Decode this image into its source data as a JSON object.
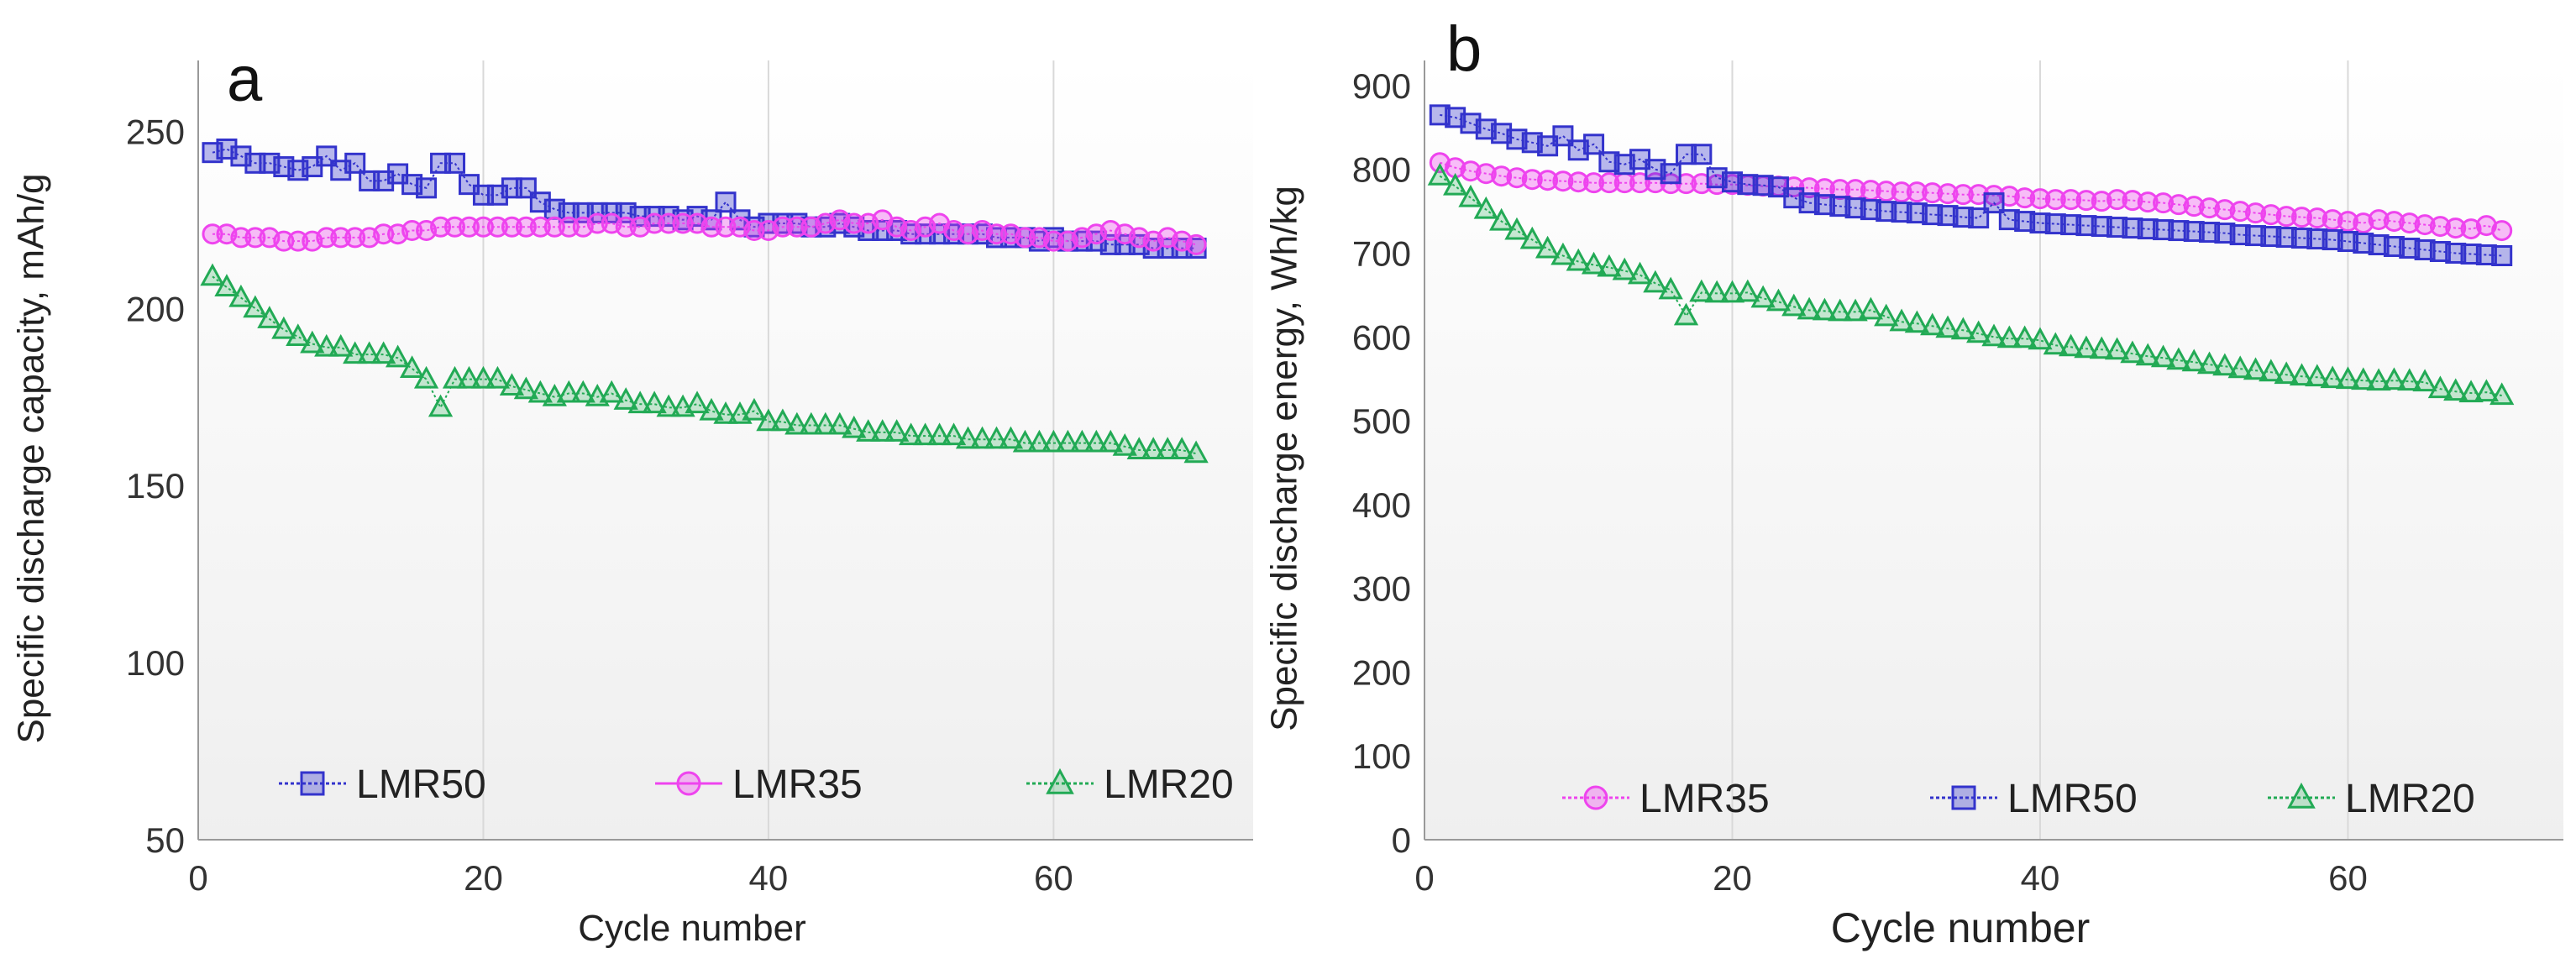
{
  "colors": {
    "LMR50": "#3333cc",
    "LMR35": "#ee44ee",
    "LMR20": "#22aa55",
    "grid": "#d9d9d9",
    "axis": "#333333"
  },
  "chart_data": [
    {
      "id": "a",
      "type": "line",
      "panel_label": "a",
      "title": "",
      "xlabel": "Cycle number",
      "ylabel": "Specific discharge capacity, mAh/g",
      "xlim": [
        0,
        74
      ],
      "ylim": [
        50,
        270
      ],
      "xticks": [
        0,
        20,
        40,
        60
      ],
      "yticks": [
        50,
        100,
        150,
        200,
        250
      ],
      "grid": "vertical",
      "legend": "bottom",
      "series": [
        {
          "name": "LMR50",
          "marker": "square",
          "x": [
            1,
            2,
            3,
            4,
            5,
            6,
            7,
            8,
            9,
            10,
            11,
            12,
            13,
            14,
            15,
            16,
            17,
            18,
            19,
            20,
            21,
            22,
            23,
            24,
            25,
            26,
            27,
            28,
            29,
            30,
            31,
            32,
            33,
            34,
            35,
            36,
            37,
            38,
            39,
            40,
            41,
            42,
            43,
            44,
            45,
            46,
            47,
            48,
            49,
            50,
            51,
            52,
            53,
            54,
            55,
            56,
            57,
            58,
            59,
            60,
            61,
            62,
            63,
            64,
            65,
            66,
            67,
            68,
            69,
            70
          ],
          "y": [
            244,
            245,
            243,
            241,
            241,
            240,
            239,
            240,
            243,
            239,
            241,
            236,
            236,
            238,
            235,
            234,
            241,
            241,
            235,
            232,
            232,
            234,
            234,
            230,
            228,
            227,
            227,
            227,
            227,
            227,
            226,
            226,
            226,
            225,
            226,
            225,
            230,
            225,
            223,
            224,
            224,
            224,
            223,
            223,
            224,
            223,
            222,
            222,
            222,
            221,
            221,
            221,
            221,
            221,
            221,
            220,
            220,
            220,
            219,
            220,
            219,
            219,
            219,
            218,
            218,
            218,
            217,
            217,
            217,
            217
          ]
        },
        {
          "name": "LMR35",
          "marker": "circle",
          "x": [
            1,
            2,
            3,
            4,
            5,
            6,
            7,
            8,
            9,
            10,
            11,
            12,
            13,
            14,
            15,
            16,
            17,
            18,
            19,
            20,
            21,
            22,
            23,
            24,
            25,
            26,
            27,
            28,
            29,
            30,
            31,
            32,
            33,
            34,
            35,
            36,
            37,
            38,
            39,
            40,
            41,
            42,
            43,
            44,
            45,
            46,
            47,
            48,
            49,
            50,
            51,
            52,
            53,
            54,
            55,
            56,
            57,
            58,
            59,
            60,
            61,
            62,
            63,
            64,
            65,
            66,
            67,
            68,
            69,
            70
          ],
          "y": [
            221,
            221,
            220,
            220,
            220,
            219,
            219,
            219,
            220,
            220,
            220,
            220,
            221,
            221,
            222,
            222,
            223,
            223,
            223,
            223,
            223,
            223,
            223,
            223,
            223,
            223,
            223,
            224,
            224,
            223,
            223,
            224,
            224,
            224,
            224,
            223,
            223,
            223,
            222,
            222,
            223,
            223,
            223,
            224,
            225,
            224,
            224,
            225,
            223,
            222,
            223,
            224,
            222,
            221,
            222,
            221,
            221,
            220,
            220,
            219,
            219,
            220,
            221,
            222,
            221,
            220,
            219,
            220,
            219,
            218
          ]
        },
        {
          "name": "LMR20",
          "marker": "triangle",
          "x": [
            1,
            2,
            3,
            4,
            5,
            6,
            7,
            8,
            9,
            10,
            11,
            12,
            13,
            14,
            15,
            16,
            17,
            18,
            19,
            20,
            21,
            22,
            23,
            24,
            25,
            26,
            27,
            28,
            29,
            30,
            31,
            32,
            33,
            34,
            35,
            36,
            37,
            38,
            39,
            40,
            41,
            42,
            43,
            44,
            45,
            46,
            47,
            48,
            49,
            50,
            51,
            52,
            53,
            54,
            55,
            56,
            57,
            58,
            59,
            60,
            61,
            62,
            63,
            64,
            65,
            66,
            67,
            68,
            69,
            70
          ],
          "y": [
            209,
            206,
            203,
            200,
            197,
            194,
            192,
            190,
            189,
            189,
            187,
            187,
            187,
            186,
            183,
            180,
            172,
            180,
            180,
            180,
            180,
            178,
            177,
            176,
            175,
            176,
            176,
            175,
            176,
            174,
            173,
            173,
            172,
            172,
            173,
            171,
            170,
            170,
            171,
            168,
            168,
            167,
            167,
            167,
            167,
            166,
            165,
            165,
            165,
            164,
            164,
            164,
            164,
            163,
            163,
            163,
            163,
            162,
            162,
            162,
            162,
            162,
            162,
            162,
            161,
            160,
            160,
            160,
            160,
            159
          ]
        }
      ]
    },
    {
      "id": "b",
      "type": "line",
      "panel_label": "b",
      "title": "",
      "xlabel": "Cycle number",
      "ylabel": "Specific discharge energy, Wh/kg",
      "xlim": [
        0,
        74
      ],
      "ylim": [
        0,
        930
      ],
      "xticks": [
        0,
        20,
        40,
        60
      ],
      "yticks": [
        0,
        100,
        200,
        300,
        400,
        500,
        600,
        700,
        800,
        900
      ],
      "grid": "vertical",
      "legend": "bottom",
      "series": [
        {
          "name": "LMR35",
          "marker": "circle",
          "x": [
            1,
            2,
            3,
            4,
            5,
            6,
            7,
            8,
            9,
            10,
            11,
            12,
            13,
            14,
            15,
            16,
            17,
            18,
            19,
            20,
            21,
            22,
            23,
            24,
            25,
            26,
            27,
            28,
            29,
            30,
            31,
            32,
            33,
            34,
            35,
            36,
            37,
            38,
            39,
            40,
            41,
            42,
            43,
            44,
            45,
            46,
            47,
            48,
            49,
            50,
            51,
            52,
            53,
            54,
            55,
            56,
            57,
            58,
            59,
            60,
            61,
            62,
            63,
            64,
            65,
            66,
            67,
            68,
            69,
            70
          ],
          "y": [
            808,
            802,
            798,
            795,
            792,
            790,
            788,
            787,
            786,
            785,
            784,
            784,
            784,
            784,
            784,
            783,
            783,
            783,
            782,
            782,
            781,
            780,
            780,
            779,
            778,
            777,
            776,
            776,
            775,
            774,
            773,
            773,
            772,
            771,
            770,
            770,
            769,
            768,
            766,
            765,
            764,
            764,
            763,
            762,
            764,
            763,
            761,
            760,
            758,
            756,
            754,
            752,
            750,
            748,
            746,
            744,
            743,
            742,
            740,
            738,
            736,
            740,
            738,
            736,
            734,
            732,
            730,
            729,
            733,
            727
          ]
        },
        {
          "name": "LMR50",
          "marker": "square",
          "x": [
            1,
            2,
            3,
            4,
            5,
            6,
            7,
            8,
            9,
            10,
            11,
            12,
            13,
            14,
            15,
            16,
            17,
            18,
            19,
            20,
            21,
            22,
            23,
            24,
            25,
            26,
            27,
            28,
            29,
            30,
            31,
            32,
            33,
            34,
            35,
            36,
            37,
            38,
            39,
            40,
            41,
            42,
            43,
            44,
            45,
            46,
            47,
            48,
            49,
            50,
            51,
            52,
            53,
            54,
            55,
            56,
            57,
            58,
            59,
            60,
            61,
            62,
            63,
            64,
            65,
            66,
            67,
            68,
            69,
            70
          ],
          "y": [
            865,
            862,
            855,
            848,
            843,
            836,
            832,
            828,
            840,
            823,
            830,
            809,
            806,
            812,
            800,
            795,
            818,
            818,
            790,
            785,
            782,
            781,
            779,
            766,
            760,
            758,
            756,
            754,
            752,
            750,
            749,
            748,
            746,
            745,
            743,
            742,
            760,
            740,
            738,
            736,
            735,
            734,
            733,
            732,
            731,
            730,
            729,
            728,
            727,
            726,
            725,
            724,
            722,
            721,
            720,
            719,
            718,
            717,
            716,
            714,
            712,
            710,
            708,
            706,
            704,
            702,
            700,
            699,
            698,
            697
          ]
        },
        {
          "name": "LMR20",
          "marker": "triangle",
          "x": [
            1,
            2,
            3,
            4,
            5,
            6,
            7,
            8,
            9,
            10,
            11,
            12,
            13,
            14,
            15,
            16,
            17,
            18,
            19,
            20,
            21,
            22,
            23,
            24,
            25,
            26,
            27,
            28,
            29,
            30,
            31,
            32,
            33,
            34,
            35,
            36,
            37,
            38,
            39,
            40,
            41,
            42,
            43,
            44,
            45,
            46,
            47,
            48,
            49,
            50,
            51,
            52,
            53,
            54,
            55,
            56,
            57,
            58,
            59,
            60,
            61,
            62,
            63,
            64,
            65,
            66,
            67,
            68,
            69,
            70
          ],
          "y": [
            792,
            780,
            766,
            752,
            738,
            727,
            716,
            705,
            697,
            690,
            686,
            683,
            679,
            674,
            664,
            656,
            625,
            653,
            652,
            652,
            653,
            646,
            642,
            636,
            632,
            631,
            630,
            630,
            632,
            624,
            618,
            616,
            613,
            610,
            608,
            604,
            600,
            598,
            598,
            596,
            590,
            588,
            586,
            585,
            584,
            580,
            577,
            575,
            572,
            570,
            567,
            565,
            562,
            560,
            558,
            555,
            553,
            552,
            550,
            549,
            548,
            547,
            548,
            547,
            546,
            538,
            535,
            533,
            534,
            530
          ]
        }
      ]
    }
  ]
}
